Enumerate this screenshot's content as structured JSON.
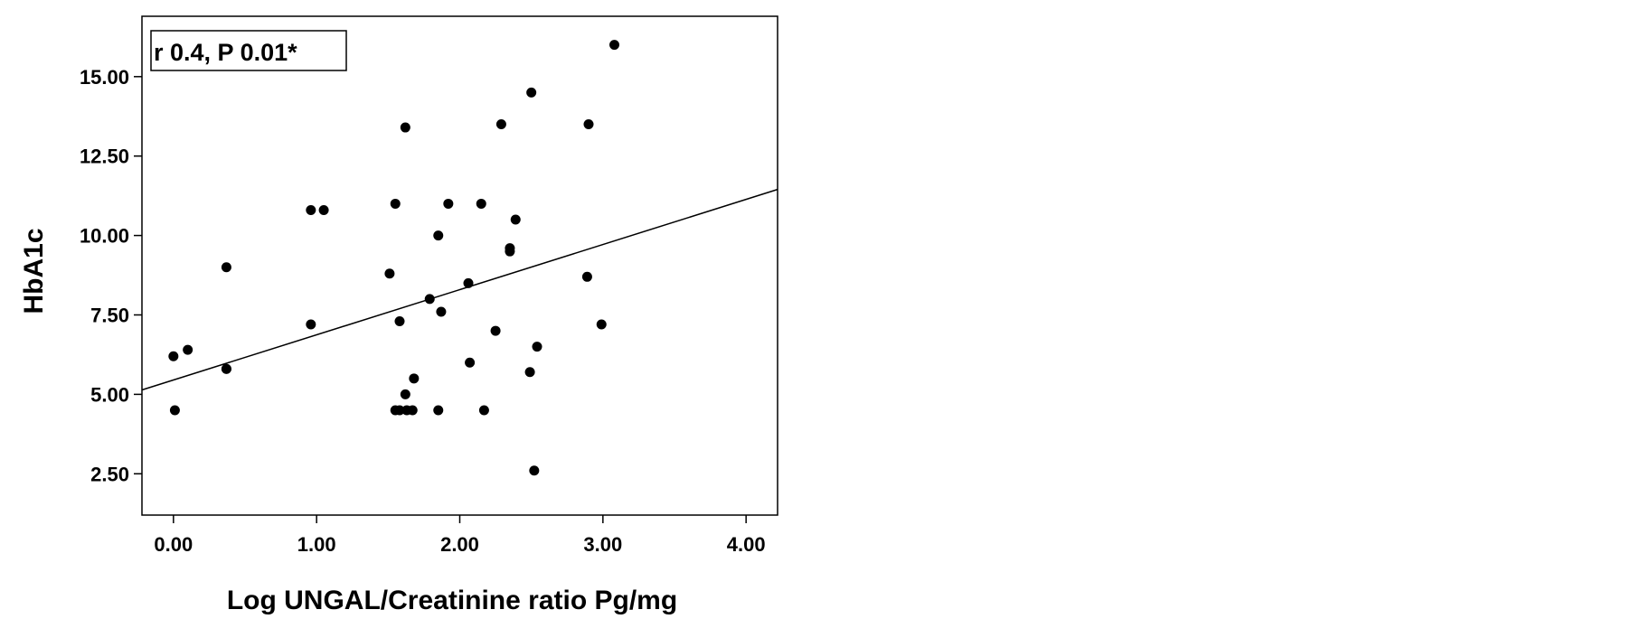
{
  "chart_data": {
    "type": "scatter",
    "title": "",
    "xlabel": "Log UNGAL/Creatinine ratio Pg/mg",
    "ylabel": "HbA1c",
    "annotation": "r 0.4, P 0.01*",
    "xlim": [
      -0.22,
      4.22
    ],
    "ylim": [
      1.2,
      16.9
    ],
    "x_ticks": [
      0,
      1,
      2,
      3,
      4
    ],
    "x_tick_labels": [
      "0.00",
      "1.00",
      "2.00",
      "3.00",
      "4.00"
    ],
    "y_ticks": [
      2.5,
      5,
      7.5,
      10,
      12.5,
      15
    ],
    "y_tick_labels": [
      "2.50",
      "5.00",
      "7.50",
      "10.00",
      "12.50",
      "15.00"
    ],
    "grid": false,
    "marker_color": "#000000",
    "fit_line": {
      "x": [
        -0.22,
        4.22
      ],
      "y": [
        5.14,
        11.45
      ]
    },
    "points": [
      [
        0.0,
        6.2
      ],
      [
        0.01,
        4.5
      ],
      [
        0.1,
        6.4
      ],
      [
        0.37,
        9.0
      ],
      [
        0.37,
        5.8
      ],
      [
        0.37,
        5.8
      ],
      [
        0.96,
        10.8
      ],
      [
        1.05,
        10.8
      ],
      [
        0.96,
        7.2
      ],
      [
        1.51,
        8.8
      ],
      [
        1.55,
        11.0
      ],
      [
        1.58,
        7.3
      ],
      [
        1.55,
        4.5
      ],
      [
        1.58,
        4.5
      ],
      [
        1.63,
        4.5
      ],
      [
        1.67,
        4.5
      ],
      [
        1.62,
        5.0
      ],
      [
        1.68,
        5.5
      ],
      [
        1.62,
        13.4
      ],
      [
        1.79,
        8.0
      ],
      [
        1.85,
        10.0
      ],
      [
        1.87,
        7.6
      ],
      [
        1.85,
        4.5
      ],
      [
        1.92,
        11.0
      ],
      [
        2.06,
        8.5
      ],
      [
        2.07,
        6.0
      ],
      [
        2.15,
        11.0
      ],
      [
        2.17,
        4.5
      ],
      [
        2.25,
        7.0
      ],
      [
        2.29,
        13.5
      ],
      [
        2.35,
        9.6
      ],
      [
        2.35,
        9.5
      ],
      [
        2.39,
        10.5
      ],
      [
        2.49,
        5.7
      ],
      [
        2.5,
        14.5
      ],
      [
        2.52,
        2.6
      ],
      [
        2.54,
        6.5
      ],
      [
        2.89,
        8.7
      ],
      [
        2.9,
        13.5
      ],
      [
        2.99,
        7.2
      ],
      [
        3.08,
        16.0
      ]
    ]
  }
}
